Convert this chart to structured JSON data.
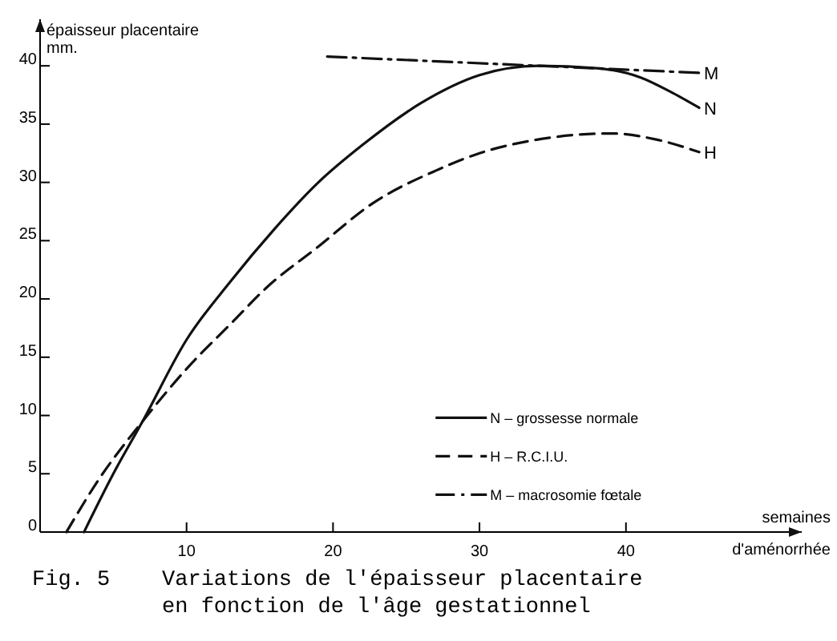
{
  "chart_data": {
    "type": "line",
    "xlabel": "semaines d'aménorrhée",
    "ylabel": "épaisseur placentaire mm.",
    "xlim": [
      0,
      52
    ],
    "ylim": [
      0,
      44
    ],
    "xticks": [
      10,
      20,
      30,
      40
    ],
    "yticks": [
      0,
      5,
      10,
      15,
      20,
      25,
      30,
      35,
      40
    ],
    "grid": false,
    "legend": "bottom right",
    "series": [
      {
        "name": "N – grossesse normale",
        "color": "#111111",
        "line_style": "solid",
        "x": [
          3,
          5,
          7,
          10,
          13,
          16,
          19,
          22,
          26,
          30,
          34,
          38,
          41,
          43,
          45
        ],
        "values": [
          0,
          5,
          9.5,
          16.5,
          21.5,
          26,
          30,
          33.2,
          36.8,
          39.2,
          40,
          39.8,
          39,
          37.8,
          36.4
        ]
      },
      {
        "name": "H – R.C.I.U.",
        "color": "#111111",
        "line_style": "dashed",
        "x": [
          1.8,
          4,
          7,
          10,
          13.2,
          15.4,
          19,
          22.7,
          27,
          30,
          33.6,
          39,
          42,
          45
        ],
        "values": [
          0,
          4.5,
          9.5,
          14,
          18.1,
          20.9,
          24.5,
          28.2,
          31,
          32.5,
          33.6,
          34.2,
          33.7,
          32.6
        ]
      },
      {
        "name": "M – macrosomie fœtale",
        "color": "#111111",
        "line_style": "dashdot",
        "x": [
          19.6,
          45
        ],
        "values": [
          40.8,
          39.4
        ]
      }
    ],
    "annotations": [
      "N",
      "H",
      "M",
      "Fig. 5    Variations de l'épaisseur placentaire\n          en fonction de l'âge gestationnel"
    ]
  }
}
